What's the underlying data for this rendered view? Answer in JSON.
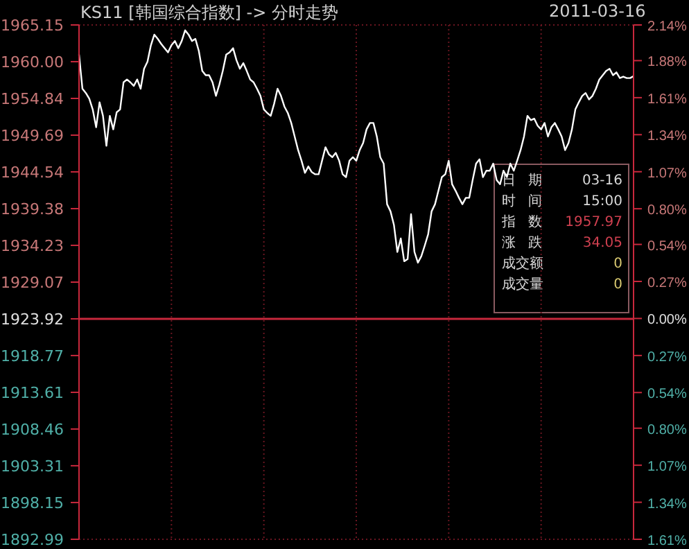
{
  "chart_data": {
    "type": "line",
    "title": "KS11 [韩国综合指数] -> 分时走势",
    "subtitle": "2011-03-16",
    "annotations": [
      "日期",
      "03-16",
      "时间",
      "15:00",
      "指数",
      "1957.97",
      "涨跌",
      "34.05",
      "成交额",
      "0",
      "成交量",
      "0"
    ],
    "categories": [
      null,
      null,
      null,
      null,
      null,
      null,
      null,
      null,
      null,
      null,
      null,
      null,
      null,
      null,
      null,
      null,
      null,
      null,
      null,
      null,
      null,
      null,
      null,
      null,
      null,
      null,
      null,
      null,
      null,
      null,
      null,
      null,
      null,
      null,
      null,
      null,
      null,
      null,
      null,
      null,
      null,
      null,
      null,
      null,
      null,
      null,
      null,
      null,
      null,
      null,
      null,
      null,
      null,
      null,
      null,
      null,
      null,
      null,
      null,
      null,
      null,
      null,
      null,
      null,
      null,
      null,
      null,
      null,
      null,
      null,
      null,
      null,
      null,
      null,
      null,
      null,
      null,
      null,
      null,
      null,
      null,
      null,
      null,
      null,
      null,
      null,
      null,
      null,
      null,
      null,
      null,
      null,
      null,
      null,
      null,
      null,
      null,
      null,
      null,
      null,
      null,
      null,
      null,
      null,
      null,
      null,
      null,
      null,
      null,
      null,
      null,
      null,
      null,
      null,
      null,
      null,
      null,
      null,
      null,
      null,
      null,
      null,
      null,
      null,
      null,
      null,
      null,
      null,
      null,
      null,
      null,
      null,
      null,
      null,
      null,
      null,
      null,
      null,
      null,
      null,
      null,
      null,
      null,
      null,
      null,
      null,
      null,
      null,
      null,
      null,
      null,
      null,
      null,
      null,
      null,
      null,
      null,
      null,
      null,
      null,
      null,
      null,
      null
    ],
    "series": [
      {
        "color": "#ffffff",
        "values": [
          1961.0,
          1956.2,
          1955.6,
          1954.8,
          1953.3,
          1950.8,
          1954.3,
          1952.4,
          1948.2,
          1952.4,
          1950.5,
          1952.9,
          1953.3,
          1957.1,
          1957.5,
          1957.1,
          1956.6,
          1957.5,
          1956.2,
          1959.0,
          1960.0,
          1962.3,
          1963.8,
          1963.2,
          1962.5,
          1961.9,
          1961.3,
          1962.3,
          1962.9,
          1961.9,
          1962.9,
          1964.4,
          1963.8,
          1962.9,
          1963.2,
          1961.5,
          1958.7,
          1958.1,
          1958.1,
          1957.1,
          1955.2,
          1956.8,
          1958.7,
          1961.0,
          1961.3,
          1961.9,
          1960.2,
          1959.0,
          1959.8,
          1958.7,
          1957.5,
          1957.1,
          1956.2,
          1955.2,
          1953.3,
          1952.8,
          1952.4,
          1954.1,
          1956.2,
          1955.2,
          1953.7,
          1952.8,
          1951.4,
          1949.5,
          1947.6,
          1946.1,
          1944.4,
          1945.3,
          1944.5,
          1944.2,
          1944.2,
          1946.1,
          1948.0,
          1947.0,
          1946.6,
          1947.2,
          1946.1,
          1944.2,
          1943.8,
          1946.1,
          1946.6,
          1946.1,
          1947.6,
          1948.6,
          1950.5,
          1951.4,
          1951.4,
          1949.5,
          1946.6,
          1945.7,
          1940.0,
          1939.0,
          1937.1,
          1933.3,
          1935.2,
          1932.0,
          1932.3,
          1938.6,
          1933.3,
          1931.8,
          1932.7,
          1934.2,
          1935.8,
          1939.0,
          1940.0,
          1941.9,
          1943.8,
          1944.2,
          1946.1,
          1942.8,
          1941.9,
          1940.9,
          1940.0,
          1940.9,
          1940.9,
          1943.4,
          1945.7,
          1946.3,
          1943.8,
          1944.7,
          1944.7,
          1945.7,
          1943.4,
          1942.8,
          1944.7,
          1943.8,
          1945.7,
          1944.7,
          1946.1,
          1947.6,
          1949.5,
          1952.4,
          1951.8,
          1952.0,
          1951.0,
          1950.5,
          1951.4,
          1949.5,
          1950.8,
          1951.4,
          1950.5,
          1949.5,
          1947.6,
          1948.6,
          1950.5,
          1953.3,
          1954.3,
          1955.2,
          1955.6,
          1954.7,
          1955.2,
          1956.2,
          1957.5,
          1958.1,
          1958.7,
          1959.0,
          1958.1,
          1958.5,
          1957.7,
          1957.9,
          1957.7,
          1957.7,
          1957.97
        ]
      }
    ],
    "ylim": [
      1892.99,
      1965.15
    ],
    "yticks": [
      1892.99,
      1898.15,
      1903.31,
      1908.46,
      1913.61,
      1918.77,
      1923.92,
      1929.07,
      1934.23,
      1939.38,
      1944.54,
      1949.69,
      1954.84,
      {
        "value": 1960,
        "label": "1960.00"
      },
      1965.15
    ],
    "y2lim": [
      -1.61,
      2.14
    ],
    "y2ticks": [
      {
        "value": -1.61,
        "label": "1.61%"
      },
      {
        "value": -1.34,
        "label": "1.34%"
      },
      {
        "value": -1.07,
        "label": "1.07%"
      },
      {
        "value": -0.8,
        "label": "0.80%"
      },
      {
        "value": -0.54,
        "label": "0.54%"
      },
      {
        "value": -0.27,
        "label": "0.27%"
      },
      {
        "value": 0,
        "label": "0.00%"
      },
      {
        "value": 0.27,
        "label": "0.27%"
      },
      {
        "value": 0.54,
        "label": "0.54%"
      },
      {
        "value": 0.8,
        "label": "0.80%"
      },
      {
        "value": 1.07,
        "label": "1.07%"
      },
      {
        "value": 1.34,
        "label": "1.34%"
      },
      {
        "value": 1.61,
        "label": "1.61%"
      },
      {
        "value": 1.88,
        "label": "1.88%"
      },
      {
        "value": 2.14,
        "label": "2.14%"
      }
    ],
    "ref_lines": [
      {
        "axis": "y",
        "value": 1923.92,
        "color": "#c8283c",
        "line_style": "solid"
      }
    ],
    "grid": true,
    "marker": "none",
    "line_style": "solid"
  }
}
